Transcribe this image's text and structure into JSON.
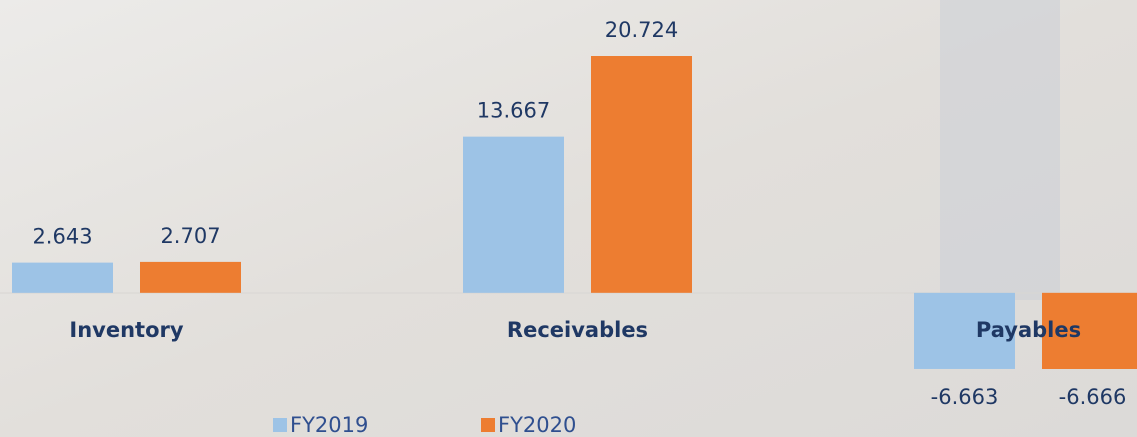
{
  "chart_data": {
    "type": "bar",
    "categories": [
      "Inventory",
      "Receivables",
      "Payables"
    ],
    "series": [
      {
        "name": "FY2019",
        "color": "#9dc3e6",
        "values": [
          2.643,
          13.667,
          -6.663
        ]
      },
      {
        "name": "FY2020",
        "color": "#ed7d31",
        "values": [
          2.707,
          20.724,
          -6.666
        ]
      }
    ],
    "legend": "bottom"
  }
}
